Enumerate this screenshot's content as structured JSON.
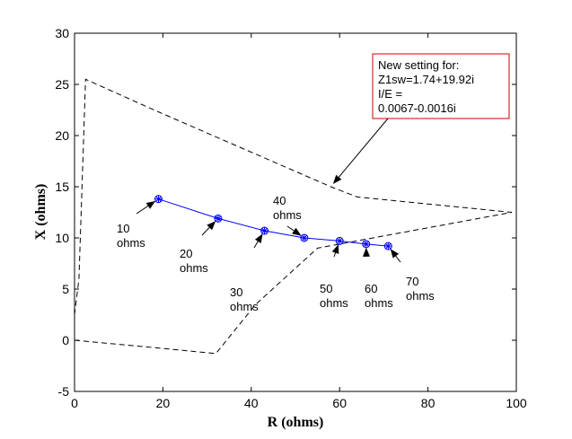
{
  "chart_data": {
    "type": "line",
    "title": "",
    "xlabel": "R (ohms)",
    "ylabel": "X (ohms)",
    "xlim": [
      0,
      100
    ],
    "ylim": [
      -5,
      30
    ],
    "xticks": [
      0,
      20,
      40,
      60,
      80,
      100
    ],
    "yticks": [
      -5,
      0,
      5,
      10,
      15,
      20,
      25,
      30
    ],
    "grid": false,
    "series": [
      {
        "style": "dashed",
        "color": "#000000",
        "points": [
          [
            0,
            2.5
          ],
          [
            1,
            6
          ],
          [
            2.5,
            25.5
          ],
          [
            18,
            22.5
          ],
          [
            58,
            15
          ],
          [
            64,
            14
          ],
          [
            99,
            12.5
          ]
        ]
      },
      {
        "style": "dashed",
        "color": "#000000",
        "points": [
          [
            0,
            0
          ],
          [
            20,
            -0.8
          ],
          [
            32,
            -1.3
          ],
          [
            41,
            3.5
          ],
          [
            55,
            9
          ],
          [
            99,
            12.5
          ]
        ]
      },
      {
        "style": "solid-markers",
        "color": "#0000ff",
        "points": [
          [
            19,
            13.8
          ],
          [
            32.5,
            11.9
          ],
          [
            43,
            10.7
          ],
          [
            52,
            10.0
          ],
          [
            60,
            9.7
          ],
          [
            66,
            9.4
          ],
          [
            71,
            9.2
          ]
        ]
      }
    ],
    "annotations": [
      {
        "lines": [
          "10",
          "ohms"
        ],
        "arrow_to": [
          19,
          13.8
        ]
      },
      {
        "lines": [
          "20",
          "ohms"
        ],
        "arrow_to": [
          32.5,
          11.9
        ]
      },
      {
        "lines": [
          "30",
          "ohms"
        ],
        "arrow_to": [
          43,
          10.7
        ]
      },
      {
        "lines": [
          "40",
          "ohms"
        ],
        "arrow_to": [
          52,
          10.0
        ]
      },
      {
        "lines": [
          "50",
          "ohms"
        ],
        "arrow_to": [
          60,
          9.7
        ]
      },
      {
        "lines": [
          "60",
          "ohms"
        ],
        "arrow_to": [
          66,
          9.4
        ]
      },
      {
        "lines": [
          "70",
          "ohms"
        ],
        "arrow_to": [
          71,
          9.2
        ]
      }
    ],
    "callout": {
      "lines": [
        "New setting for:",
        "Z1sw=1.74+19.92i",
        "I/E =",
        "0.0067-0.0016i"
      ],
      "border_color": "#cc0000",
      "arrow_to": [
        58,
        15
      ]
    }
  }
}
